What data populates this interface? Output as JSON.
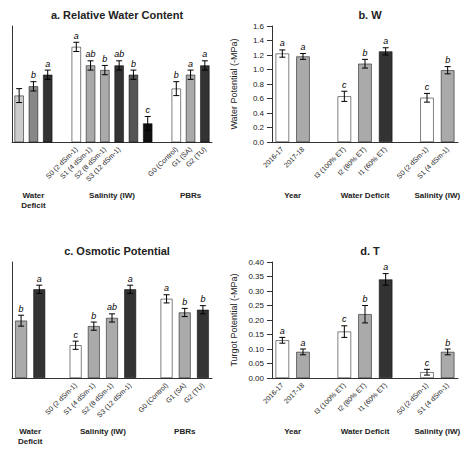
{
  "chart_data": [
    {
      "type": "bar",
      "title": "a. Relative Water Content",
      "ylim": [
        55,
        105
      ],
      "grid": false,
      "tick_labels": "x",
      "groups": [
        {
          "name": "Water\nDeficit",
          "categories": [
            null,
            null,
            null
          ],
          "values": [
            75,
            79,
            84
          ],
          "errors": [
            3,
            2,
            2
          ],
          "colors": [
            "#cccccc",
            "#888888",
            "#333333"
          ],
          "annotations": [
            null,
            "b",
            "a"
          ]
        },
        {
          "name": "Salinity (IW)",
          "categories": [
            "S0 (2 dSm-1)",
            "S1 (4 dSm-1)",
            "S2 (8 dSm-1)",
            "S3 (12 dSm-1)",
            null,
            null
          ],
          "values": [
            96,
            88,
            86,
            88,
            84,
            63
          ],
          "errors": [
            2,
            2,
            2,
            2,
            2,
            3
          ],
          "colors": [
            "white",
            "#aaaaaa",
            "#aaaaaa",
            "#333333",
            "#555555",
            "#111111"
          ],
          "annotations": [
            "a",
            "ab",
            "b",
            "ab",
            "b",
            "c"
          ]
        },
        {
          "name": "PBRs",
          "categories": [
            "G0 (Control)",
            "G1 (SA)",
            "G2 (TU)"
          ],
          "values": [
            78,
            84,
            88
          ],
          "errors": [
            3,
            2,
            2
          ],
          "colors": [
            "white",
            "#aaaaaa",
            "#333333"
          ],
          "annotations": [
            "b",
            "a",
            "a"
          ]
        }
      ]
    },
    {
      "type": "bar",
      "title": "b. W",
      "ylabel": "Water Potential (-MPa)",
      "ylim": [
        0,
        1.6
      ],
      "yticks": [
        {
          "value": 0,
          "label": "0.0"
        },
        0.2,
        0.4,
        0.6,
        0.8,
        {
          "value": 1,
          "label": "1.0"
        },
        1.2,
        1.4,
        1.6
      ],
      "grid": false,
      "groups": [
        {
          "name": "Year",
          "categories": [
            "2016-17",
            "2017-18"
          ],
          "values": [
            1.22,
            1.18
          ],
          "errors": [
            0.05,
            0.04
          ],
          "colors": [
            "white",
            "#aaaaaa"
          ],
          "annotations": [
            "a",
            "a"
          ]
        },
        {
          "name": "Water Deficit",
          "categories": [
            "I3 (100% ET)",
            "I2 (80% ET)",
            "I1 (60% ET)"
          ],
          "values": [
            0.63,
            1.08,
            1.25
          ],
          "errors": [
            0.07,
            0.06,
            0.05
          ],
          "colors": [
            "white",
            "#aaaaaa",
            "#333333"
          ],
          "annotations": [
            "c",
            "b",
            "a"
          ]
        },
        {
          "name": "Salinity (IW)",
          "categories": [
            "S0 (2 dSm-1)",
            "S1 (4 dSm-1)"
          ],
          "values": [
            0.61,
            0.99
          ],
          "errors": [
            0.06,
            0.05
          ],
          "colors": [
            "white",
            "#aaaaaa"
          ],
          "annotations": [
            "c",
            "b"
          ]
        }
      ]
    },
    {
      "type": "bar",
      "title": "c. Osmotic Potential",
      "ylim": [
        0,
        85
      ],
      "grid": false,
      "tick_labels": "x",
      "groups": [
        {
          "name": "Water\nDeficit",
          "categories": [
            null,
            null
          ],
          "values": [
            42,
            65
          ],
          "errors": [
            4,
            3
          ],
          "colors": [
            "#aaaaaa",
            "#333333"
          ],
          "annotations": [
            "b",
            "a"
          ]
        },
        {
          "name": "Salinity (IW)",
          "categories": [
            "S0 (2 dSm-1)",
            "S1 (4 dSm-1)",
            "S2 (8 dSm-1)",
            "S3 (12 dSm-1)"
          ],
          "values": [
            24,
            38,
            44,
            65
          ],
          "errors": [
            3,
            3,
            3,
            3
          ],
          "colors": [
            "white",
            "#aaaaaa",
            "#aaaaaa",
            "#333333"
          ],
          "annotations": [
            "c",
            "b",
            "ab",
            "a"
          ]
        },
        {
          "name": "PBRs",
          "categories": [
            "G0 (Control)",
            "G1 (SA)",
            "G2 (TU)"
          ],
          "values": [
            58,
            48,
            50
          ],
          "errors": [
            3,
            3,
            3
          ],
          "colors": [
            "white",
            "#aaaaaa",
            "#333333"
          ],
          "annotations": [
            "a",
            "b",
            "b"
          ]
        }
      ]
    },
    {
      "type": "bar",
      "title": "d. T",
      "ylabel": "Turgot Potential (-MPa)",
      "ylim": [
        0,
        0.4
      ],
      "yticks": [
        {
          "value": 0,
          "label": "0.00"
        },
        0.05,
        {
          "value": 0.1,
          "label": "0.10"
        },
        0.15,
        {
          "value": 0.2,
          "label": "0.20"
        },
        0.25,
        {
          "value": 0.3,
          "label": "0.30"
        },
        0.35,
        {
          "value": 0.4,
          "label": "0.40"
        }
      ],
      "grid": false,
      "groups": [
        {
          "name": "Year",
          "categories": [
            "2016-17",
            "2017-18"
          ],
          "values": [
            0.13,
            0.09
          ],
          "errors": [
            0.01,
            0.01
          ],
          "colors": [
            "white",
            "#aaaaaa"
          ],
          "annotations": [
            "a",
            "a"
          ]
        },
        {
          "name": "Water Deficit",
          "categories": [
            "I3 (100% ET)",
            "I2 (80% ET)",
            "I1 (60% ET)"
          ],
          "values": [
            0.16,
            0.22,
            0.34
          ],
          "errors": [
            0.02,
            0.03,
            0.02
          ],
          "colors": [
            "white",
            "#aaaaaa",
            "#333333"
          ],
          "annotations": [
            "c",
            "b",
            "a"
          ]
        },
        {
          "name": "Salinity (IW)",
          "categories": [
            "S0 (2 dSm-1)",
            "S1 (4 dSm-1)"
          ],
          "values": [
            0.02,
            0.09
          ],
          "errors": [
            0.01,
            0.01
          ],
          "colors": [
            "white",
            "#aaaaaa"
          ],
          "annotations": [
            "c",
            "b"
          ]
        }
      ]
    }
  ]
}
